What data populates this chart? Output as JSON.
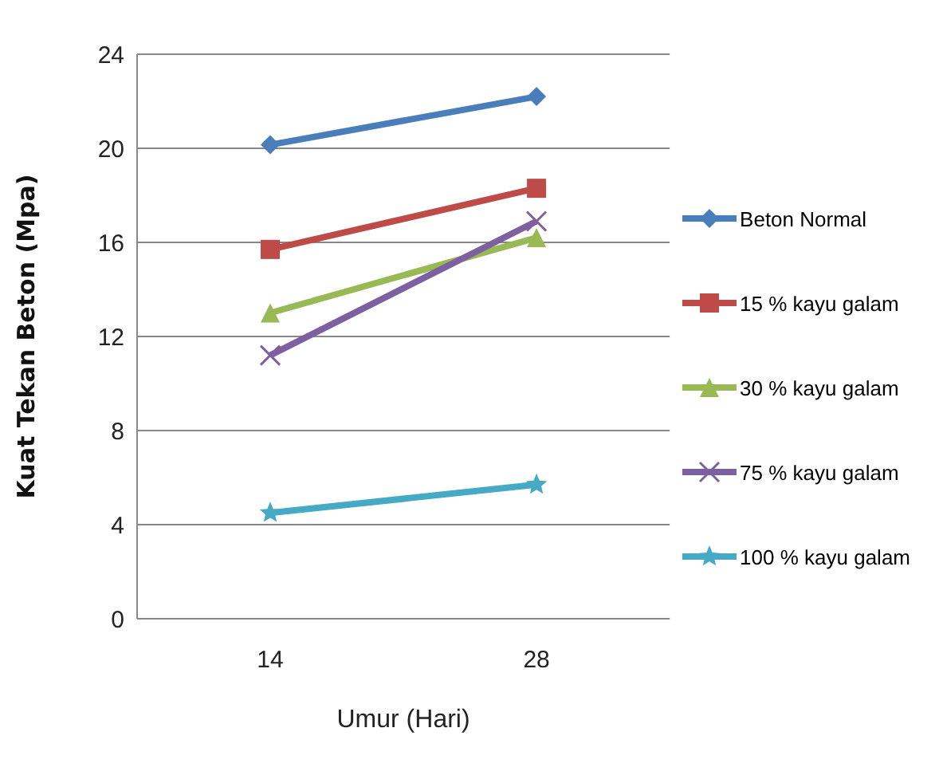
{
  "chart_data": {
    "type": "line",
    "xlabel": "Umur (Hari)",
    "ylabel": "Kuat Tekan Beton (Mpa)",
    "categories": [
      "14",
      "28"
    ],
    "series": [
      {
        "name": "Beton Normal",
        "color": "#4a7ebb",
        "values": [
          20.15,
          22.2
        ],
        "marker": "diamond"
      },
      {
        "name": "15 % kayu galam",
        "color": "#be4b48",
        "values": [
          15.7,
          18.3
        ],
        "marker": "square"
      },
      {
        "name": "30 % kayu galam",
        "color": "#98b954",
        "values": [
          13,
          16.2
        ],
        "marker": "triangle"
      },
      {
        "name": "75 % kayu galam",
        "color": "#7d60a0",
        "values": [
          11.2,
          16.9
        ],
        "marker": "cross"
      },
      {
        "name": "100 % kayu galam",
        "color": "#46aac5",
        "values": [
          4.5,
          5.7
        ],
        "marker": "star"
      }
    ],
    "ylim": [
      0,
      24
    ],
    "yticks": [
      0,
      4,
      8,
      12,
      16,
      20,
      24
    ],
    "grid": "y",
    "legend": "right",
    "line_style": "solid"
  }
}
